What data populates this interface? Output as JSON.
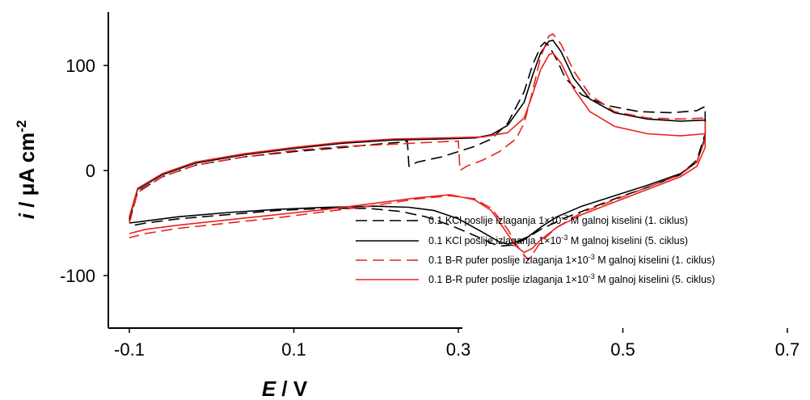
{
  "chart_data": {
    "type": "line",
    "xlabel_main": "E",
    "xlabel_unit": " / V",
    "ylabel_main": "i",
    "ylabel_unit": " /  μA cm",
    "ylabel_exp": "-2",
    "xlim": [
      -0.15,
      0.7
    ],
    "ylim": [
      -150,
      145
    ],
    "xticks": [
      -0.1,
      0.1,
      0.3,
      0.5,
      0.7
    ],
    "xtick_labels": [
      "-0.1",
      "0.1",
      "0.3",
      "0.5",
      "0.7"
    ],
    "yticks": [
      -100,
      0,
      100
    ],
    "ytick_labels": [
      "-100",
      "0",
      "100"
    ],
    "legend_position": "right",
    "series": [
      {
        "name": "0.1 KCl poslije izlaganja 1×10-3 M galnoj kiselini (1. ciklus)",
        "legend_pre": "0.1 KCl poslije izlaganja 1×10",
        "legend_exp": "-3",
        "legend_post": " M galnoj kiselini (1. ciklus)",
        "color": "#000000",
        "dash": "14 7",
        "points": [
          [
            -0.1,
            -48
          ],
          [
            -0.09,
            -20
          ],
          [
            -0.06,
            -6
          ],
          [
            -0.02,
            5
          ],
          [
            0.04,
            13
          ],
          [
            0.1,
            18
          ],
          [
            0.16,
            22
          ],
          [
            0.2,
            25
          ],
          [
            0.23,
            27
          ],
          [
            0.238,
            28
          ],
          [
            0.24,
            4
          ],
          [
            0.25,
            8
          ],
          [
            0.28,
            13
          ],
          [
            0.3,
            18
          ],
          [
            0.32,
            23
          ],
          [
            0.34,
            30
          ],
          [
            0.36,
            45
          ],
          [
            0.38,
            75
          ],
          [
            0.39,
            100
          ],
          [
            0.4,
            118
          ],
          [
            0.405,
            122
          ],
          [
            0.41,
            119
          ],
          [
            0.42,
            105
          ],
          [
            0.43,
            88
          ],
          [
            0.45,
            72
          ],
          [
            0.48,
            62
          ],
          [
            0.52,
            56
          ],
          [
            0.56,
            55
          ],
          [
            0.59,
            57
          ],
          [
            0.6,
            61
          ],
          [
            0.6,
            35
          ],
          [
            0.59,
            10
          ],
          [
            0.57,
            -4
          ],
          [
            0.53,
            -16
          ],
          [
            0.49,
            -27
          ],
          [
            0.46,
            -36
          ],
          [
            0.43,
            -45
          ],
          [
            0.4,
            -56
          ],
          [
            0.38,
            -66
          ],
          [
            0.365,
            -71
          ],
          [
            0.35,
            -72
          ],
          [
            0.34,
            -69
          ],
          [
            0.32,
            -62
          ],
          [
            0.29,
            -52
          ],
          [
            0.26,
            -44
          ],
          [
            0.23,
            -39
          ],
          [
            0.19,
            -36
          ],
          [
            0.14,
            -36
          ],
          [
            0.08,
            -38
          ],
          [
            0.02,
            -42
          ],
          [
            -0.04,
            -46
          ],
          [
            -0.08,
            -50
          ],
          [
            -0.1,
            -53
          ]
        ]
      },
      {
        "name": "0.1 KCl poslije izlaganja 1×10-3 M galnoj kiselini (5. ciklus)",
        "legend_pre": "0.1 KCl poslije izlaganja 1×10",
        "legend_exp": "-3",
        "legend_post": " M galnoj kiselini (5. ciklus)",
        "color": "#000000",
        "dash": "",
        "points": [
          [
            -0.1,
            -46
          ],
          [
            -0.09,
            -18
          ],
          [
            -0.06,
            -4
          ],
          [
            -0.02,
            7
          ],
          [
            0.04,
            15
          ],
          [
            0.1,
            21
          ],
          [
            0.16,
            26
          ],
          [
            0.22,
            29
          ],
          [
            0.28,
            30
          ],
          [
            0.32,
            31
          ],
          [
            0.34,
            34
          ],
          [
            0.36,
            43
          ],
          [
            0.38,
            65
          ],
          [
            0.39,
            90
          ],
          [
            0.4,
            112
          ],
          [
            0.41,
            123
          ],
          [
            0.415,
            124
          ],
          [
            0.425,
            113
          ],
          [
            0.44,
            88
          ],
          [
            0.46,
            68
          ],
          [
            0.49,
            55
          ],
          [
            0.53,
            49
          ],
          [
            0.57,
            47
          ],
          [
            0.6,
            48
          ],
          [
            0.6,
            32
          ],
          [
            0.59,
            8
          ],
          [
            0.57,
            -3
          ],
          [
            0.53,
            -14
          ],
          [
            0.49,
            -24
          ],
          [
            0.45,
            -34
          ],
          [
            0.42,
            -44
          ],
          [
            0.4,
            -54
          ],
          [
            0.385,
            -63
          ],
          [
            0.37,
            -68
          ],
          [
            0.36,
            -70
          ],
          [
            0.35,
            -68
          ],
          [
            0.33,
            -59
          ],
          [
            0.3,
            -46
          ],
          [
            0.27,
            -38
          ],
          [
            0.24,
            -35
          ],
          [
            0.2,
            -34
          ],
          [
            0.14,
            -35
          ],
          [
            0.08,
            -37
          ],
          [
            0.02,
            -40
          ],
          [
            -0.04,
            -44
          ],
          [
            -0.08,
            -48
          ],
          [
            -0.1,
            -50
          ]
        ]
      },
      {
        "name": "0.1 B-R pufer poslije izlaganja 1×10-3 M galnoj kiselini (1. ciklus)",
        "legend_pre": "0.1 B-R pufer poslije izlaganja 1×10",
        "legend_exp": "-3",
        "legend_post": " M galnoj kiselini (1. ciklus)",
        "color": "#e8231f",
        "dash": "14 7",
        "points": [
          [
            -0.1,
            -50
          ],
          [
            -0.09,
            -21
          ],
          [
            -0.06,
            -6
          ],
          [
            -0.02,
            5
          ],
          [
            0.04,
            13
          ],
          [
            0.1,
            19
          ],
          [
            0.16,
            23
          ],
          [
            0.22,
            25
          ],
          [
            0.27,
            27
          ],
          [
            0.3,
            28
          ],
          [
            0.302,
            0
          ],
          [
            0.31,
            4
          ],
          [
            0.33,
            10
          ],
          [
            0.35,
            18
          ],
          [
            0.37,
            30
          ],
          [
            0.38,
            45
          ],
          [
            0.39,
            75
          ],
          [
            0.4,
            108
          ],
          [
            0.41,
            128
          ],
          [
            0.415,
            130
          ],
          [
            0.425,
            120
          ],
          [
            0.44,
            95
          ],
          [
            0.46,
            72
          ],
          [
            0.49,
            56
          ],
          [
            0.53,
            50
          ],
          [
            0.57,
            49
          ],
          [
            0.6,
            50
          ],
          [
            0.6,
            30
          ],
          [
            0.59,
            8
          ],
          [
            0.57,
            -4
          ],
          [
            0.53,
            -16
          ],
          [
            0.49,
            -28
          ],
          [
            0.45,
            -40
          ],
          [
            0.42,
            -54
          ],
          [
            0.4,
            -68
          ],
          [
            0.39,
            -80
          ],
          [
            0.385,
            -85
          ],
          [
            0.375,
            -76
          ],
          [
            0.36,
            -56
          ],
          [
            0.34,
            -36
          ],
          [
            0.32,
            -27
          ],
          [
            0.29,
            -24
          ],
          [
            0.25,
            -27
          ],
          [
            0.2,
            -33
          ],
          [
            0.14,
            -39
          ],
          [
            0.08,
            -45
          ],
          [
            0.02,
            -50
          ],
          [
            -0.04,
            -55
          ],
          [
            -0.08,
            -60
          ],
          [
            -0.1,
            -64
          ]
        ]
      },
      {
        "name": "0.1 B-R pufer poslije izlaganja 1×10-3 M galnoj kiselini (5. ciklus)",
        "legend_pre": "0.1 B-R pufer poslije izlaganja 1×10",
        "legend_exp": "-3",
        "legend_post": " M galnoj kiselini (5. ciklus)",
        "color": "#e8231f",
        "dash": "",
        "points": [
          [
            -0.1,
            -44
          ],
          [
            -0.09,
            -17
          ],
          [
            -0.06,
            -3
          ],
          [
            -0.02,
            8
          ],
          [
            0.04,
            16
          ],
          [
            0.1,
            22
          ],
          [
            0.16,
            27
          ],
          [
            0.22,
            30
          ],
          [
            0.28,
            31
          ],
          [
            0.33,
            32
          ],
          [
            0.36,
            36
          ],
          [
            0.38,
            50
          ],
          [
            0.39,
            72
          ],
          [
            0.4,
            96
          ],
          [
            0.41,
            110
          ],
          [
            0.415,
            112
          ],
          [
            0.425,
            102
          ],
          [
            0.44,
            78
          ],
          [
            0.46,
            56
          ],
          [
            0.49,
            42
          ],
          [
            0.53,
            35
          ],
          [
            0.57,
            33
          ],
          [
            0.6,
            35
          ],
          [
            0.6,
            22
          ],
          [
            0.59,
            4
          ],
          [
            0.57,
            -6
          ],
          [
            0.53,
            -18
          ],
          [
            0.49,
            -30
          ],
          [
            0.45,
            -42
          ],
          [
            0.42,
            -54
          ],
          [
            0.4,
            -66
          ],
          [
            0.39,
            -74
          ],
          [
            0.38,
            -78
          ],
          [
            0.37,
            -72
          ],
          [
            0.355,
            -55
          ],
          [
            0.34,
            -38
          ],
          [
            0.32,
            -28
          ],
          [
            0.29,
            -23
          ],
          [
            0.25,
            -26
          ],
          [
            0.2,
            -31
          ],
          [
            0.14,
            -37
          ],
          [
            0.08,
            -42
          ],
          [
            0.02,
            -47
          ],
          [
            -0.04,
            -52
          ],
          [
            -0.08,
            -56
          ],
          [
            -0.1,
            -60
          ]
        ]
      }
    ]
  }
}
